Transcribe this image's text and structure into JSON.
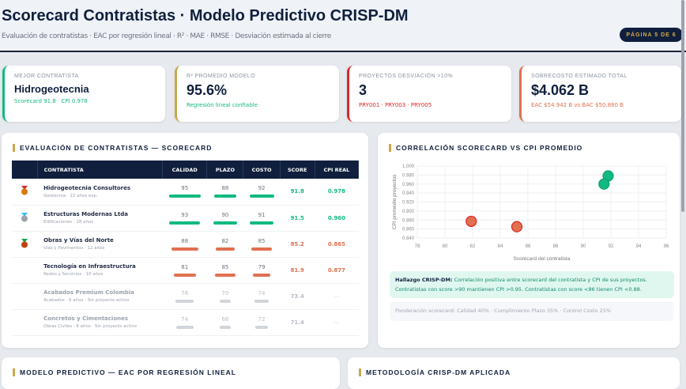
{
  "header": {
    "title": "Scorecard Contratistas · Modelo Predictivo CRISP-DM",
    "subtitle": "Evaluación de contratistas · EAC por regresión lineal · R² · MAE · RMSE · Desviación estimada al cierre",
    "page": "PÁGINA 5 DE 6"
  },
  "kpis": [
    {
      "label": "MEJOR CONTRATISTA",
      "value": "Hidrogeotecnia",
      "sub": "Scorecard 91.8 · CPI 0.978",
      "color": "#10b981"
    },
    {
      "label": "R² PROMEDIO MODELO",
      "value": "95.6%",
      "sub": "Regresión lineal confiable",
      "color": "#c9a84c",
      "sub_color": "#10b981"
    },
    {
      "label": "PROYECTOS DESVIACIÓN >10%",
      "value": "3",
      "sub": "PRY001 · PRY003 · PRY005",
      "color": "#dc2626"
    },
    {
      "label": "SOBRECOSTO ESTIMADO TOTAL",
      "value": "$4.062 B",
      "sub": "EAC $54.942 B vs BAC $50.880 B",
      "color": "#e07050"
    }
  ],
  "scorecard": {
    "title": "EVALUACIÓN DE CONTRATISTAS — SCORECARD",
    "columns": [
      "",
      "CONTRATISTA",
      "CALIDAD",
      "PLAZO",
      "COSTO",
      "SCORE",
      "CPI REAL"
    ],
    "rows": [
      {
        "medal": "gold-medal",
        "name": "Hidrogeotecnia Consultores",
        "desc": "Geotecnia · 22 años exp.",
        "calidad": "95",
        "plazo": "88",
        "costo": "92",
        "score": "91.8",
        "cpi": "0.978",
        "status": "good"
      },
      {
        "medal": "silver-medal",
        "name": "Estructuras Modernas Ltda",
        "desc": "Edificaciones · 18 años",
        "calidad": "93",
        "plazo": "90",
        "costo": "91",
        "score": "91.5",
        "cpi": "0.960",
        "status": "good"
      },
      {
        "medal": "bronze-medal",
        "name": "Obras y Vías del Norte",
        "desc": "Vías y Pavimentos · 12 años",
        "calidad": "88",
        "plazo": "82",
        "costo": "85",
        "score": "85.2",
        "cpi": "0.865",
        "status": "bad"
      },
      {
        "medal": "",
        "name": "Tecnología en Infraestructura",
        "desc": "Redes y Servicios · 10 años",
        "calidad": "81",
        "plazo": "85",
        "costo": "79",
        "score": "81.9",
        "cpi": "0.877",
        "status": "bad"
      },
      {
        "medal": "",
        "name": "Acabados Premium Colombia",
        "desc": "Acabados · 6 años · Sin proyecto activo",
        "calidad": "76",
        "plazo": "70",
        "costo": "74",
        "score": "73.4",
        "cpi": "—",
        "status": "inactive"
      },
      {
        "medal": "",
        "name": "Concretos y Cimentaciones",
        "desc": "Obras Civiles · 8 años · Sin proyecto activo",
        "calidad": "74",
        "plazo": "68",
        "costo": "72",
        "score": "71.4",
        "cpi": "—",
        "status": "inactive"
      }
    ]
  },
  "colors": {
    "good": "#10b981",
    "bad": "#e07050",
    "inactive": "#d1d5db",
    "navy": "#0f1f3d",
    "gold": "#c9a84c"
  },
  "correlation": {
    "title": "CORRELACIÓN SCORECARD VS CPI PROMEDIO",
    "finding_label": "Hallazgo CRISP-DM:",
    "finding": "Correlación positiva entre scorecard del contratista y CPI de sus proyectos. Contratistas con score >90 mantienen CPI >0.95. Contratistas con score <86 tienen CPI <0.88.",
    "note": "Ponderación scorecard: Calidad 40% · Cumplimiento Plazo 35% · Control Costo 25%"
  },
  "chart_data": {
    "type": "scatter",
    "xlabel": "Scorecard del contratista",
    "ylabel": "CPI promedio proyectos",
    "xlim": [
      78,
      96
    ],
    "ylim": [
      0.84,
      1.0
    ],
    "grid": true,
    "x_ticks": [
      "78",
      "80",
      "82",
      "84",
      "86",
      "88",
      "90",
      "92",
      "94",
      "96"
    ],
    "y_ticks": [
      "1.000",
      "0.980",
      "0.960",
      "0.940",
      "0.920",
      "0.900",
      "0.880",
      "0.860",
      "0.840"
    ],
    "points": [
      {
        "x": 91.8,
        "y": 0.978,
        "color": "#10b981"
      },
      {
        "x": 91.5,
        "y": 0.96,
        "color": "#10b981"
      },
      {
        "x": 85.2,
        "y": 0.865,
        "color": "#e07050"
      },
      {
        "x": 81.9,
        "y": 0.877,
        "color": "#e07050"
      }
    ]
  },
  "bottom": {
    "left_title": "MODELO PREDICTIVO — EAC POR REGRESIÓN LINEAL",
    "right_title": "METODOLOGÍA CRISP-DM APLICADA"
  }
}
